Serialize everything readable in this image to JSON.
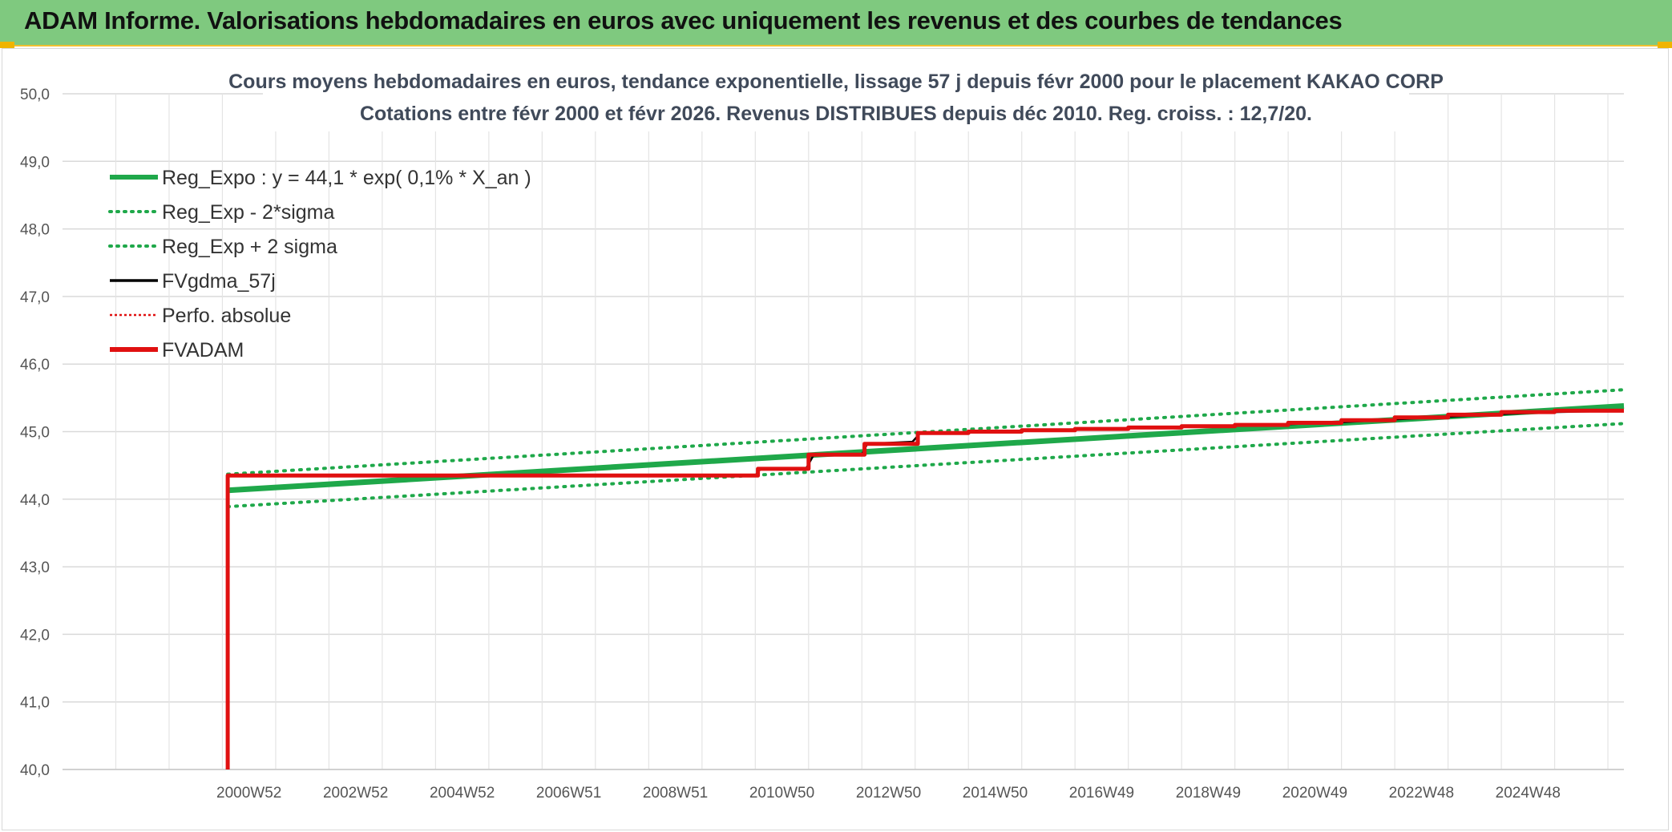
{
  "banner": {
    "title": "ADAM Informe. Valorisations hebdomadaires en euros avec uniquement les revenus et des courbes de tendances"
  },
  "colors": {
    "banner_bg": "#7fc97f",
    "regression": "#1fa84a",
    "sigma": "#1fa84a",
    "fvgdma": "#000000",
    "perfo": "#e01010",
    "fvadam": "#e01010"
  },
  "chart_data": {
    "type": "line",
    "title_line1": "Cours moyens hebdomadaires en euros, tendance exponentielle, lissage 57 j depuis févr 2000 pour le placement KAKAO CORP",
    "title_line2": "Cotations entre févr 2000 et févr 2026. Revenus DISTRIBUES depuis déc 2010. Reg. croiss. : 12,7/20.",
    "ylim": [
      40,
      50
    ],
    "xlim": [
      1997,
      2026.3
    ],
    "y_ticks": [
      "40,0",
      "41,0",
      "42,0",
      "43,0",
      "44,0",
      "45,0",
      "46,0",
      "47,0",
      "48,0",
      "49,0",
      "50,0"
    ],
    "x_tick_labels": [
      {
        "year": 2000,
        "label": "2000W52"
      },
      {
        "year": 2002,
        "label": "2002W52"
      },
      {
        "year": 2004,
        "label": "2004W52"
      },
      {
        "year": 2006,
        "label": "2006W51"
      },
      {
        "year": 2008,
        "label": "2008W51"
      },
      {
        "year": 2010,
        "label": "2010W50"
      },
      {
        "year": 2012,
        "label": "2012W50"
      },
      {
        "year": 2014,
        "label": "2014W50"
      },
      {
        "year": 2016,
        "label": "2016W49"
      },
      {
        "year": 2018,
        "label": "2018W49"
      },
      {
        "year": 2020,
        "label": "2020W49"
      },
      {
        "year": 2022,
        "label": "2022W48"
      },
      {
        "year": 2024,
        "label": "2024W48"
      }
    ],
    "legend": [
      {
        "key": "reg",
        "label": "Reg_Expo : y = 44,1 * exp( 0,1% *  X_an )"
      },
      {
        "key": "low",
        "label": "Reg_Exp - 2*sigma"
      },
      {
        "key": "high",
        "label": "Reg_Exp + 2 sigma"
      },
      {
        "key": "fvg",
        "label": "FVgdma_57j"
      },
      {
        "key": "perfo",
        "label": "Perfo. absolue"
      },
      {
        "key": "adam",
        "label": "FVADAM"
      }
    ],
    "series": [
      {
        "name": "Reg_Expo : y = 44,1 * exp( 0,1% *  X_an )",
        "x": [
          2000.1,
          2026.3
        ],
        "y": [
          44.13,
          45.38
        ]
      },
      {
        "name": "Reg_Exp - 2*sigma",
        "x": [
          2000.1,
          2026.3
        ],
        "y": [
          43.89,
          45.12
        ]
      },
      {
        "name": "Reg_Exp + 2 sigma",
        "x": [
          2000.1,
          2026.3
        ],
        "y": [
          44.37,
          45.62
        ]
      },
      {
        "name": "FVgdma_57j",
        "x": [
          2000.1,
          2000.1,
          2010.0,
          2010.1,
          2010.95,
          2011.1,
          2012.0,
          2012.1,
          2012.95,
          2013.1,
          2014.0,
          2015.0,
          2016.0,
          2017.0,
          2018.0,
          2019.0,
          2020.0,
          2021.0,
          2022.0,
          2023.0,
          2024.0,
          2025.0,
          2026.3
        ],
        "y": [
          40.0,
          44.35,
          44.35,
          44.45,
          44.45,
          44.66,
          44.66,
          44.82,
          44.85,
          44.98,
          44.99,
          45.01,
          45.03,
          45.05,
          45.07,
          45.09,
          45.11,
          45.14,
          45.18,
          45.22,
          45.26,
          45.29,
          45.31
        ]
      },
      {
        "name": "FVADAM",
        "x": [
          2000.1,
          2000.1,
          2010.05,
          2010.05,
          2011.0,
          2011.0,
          2012.05,
          2012.05,
          2013.05,
          2013.05,
          2014.0,
          2014.0,
          2015.0,
          2015.0,
          2016.0,
          2016.0,
          2017.0,
          2017.0,
          2018.0,
          2018.0,
          2019.0,
          2019.0,
          2020.0,
          2020.0,
          2021.0,
          2021.0,
          2022.0,
          2022.0,
          2023.0,
          2023.0,
          2024.0,
          2024.0,
          2025.0,
          2025.0,
          2026.3
        ],
        "y": [
          40.0,
          44.35,
          44.35,
          44.45,
          44.45,
          44.66,
          44.66,
          44.82,
          44.82,
          44.98,
          44.98,
          45.0,
          45.0,
          45.02,
          45.02,
          45.04,
          45.04,
          45.06,
          45.06,
          45.08,
          45.08,
          45.1,
          45.1,
          45.13,
          45.13,
          45.17,
          45.17,
          45.21,
          45.21,
          45.25,
          45.25,
          45.29,
          45.29,
          45.31,
          45.31
        ]
      }
    ],
    "grid": true,
    "legend_position": "top-left"
  }
}
